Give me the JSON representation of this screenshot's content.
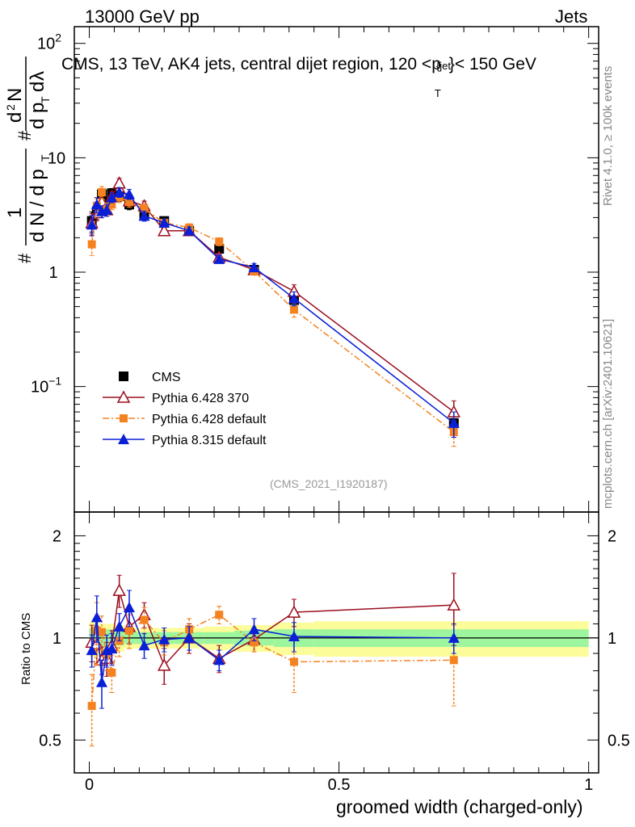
{
  "header": {
    "left": "13000 GeV pp",
    "right": "Jets"
  },
  "side_labels": {
    "rivet": "Rivet 4.1.0, ≥ 100k events",
    "mcplots": "mcplots.cern.ch [arXiv:2401.10621]"
  },
  "chart_data": {
    "type": "line",
    "title": "CMS, 13 TeV, AK4 jets, central dijet region, 120 <p{jet}T}< 150 GeV",
    "title_parts": [
      "CMS, 13 TeV, AK4 jets, central dijet region, 120 <p",
      "{jet",
      "T",
      "}< 150 GeV"
    ],
    "analysis_tag": "(CMS_2021_I1920187)",
    "xlabel": "groomed width (charged-only)",
    "ylabel_main": "#frac{1}{dN/dp_T} #frac{d^2N}{dp_T dλ}",
    "ylabel_ratio": "Ratio to CMS",
    "xlim": [
      -0.03,
      1.02
    ],
    "ylim_main": [
      0.008,
      140
    ],
    "ylim_ratio": [
      0.4,
      2.35
    ],
    "x_ticks": [
      "0",
      "0.5",
      "1"
    ],
    "y_ticks_main": [
      "10^-1",
      "1",
      "10",
      "10^2"
    ],
    "y_ticks_ratio": [
      "0.5",
      "1",
      "2"
    ],
    "x": [
      0.005,
      0.015,
      0.025,
      0.035,
      0.045,
      0.06,
      0.08,
      0.11,
      0.15,
      0.2,
      0.26,
      0.33,
      0.41,
      0.73
    ],
    "series": [
      {
        "name": "CMS",
        "color": "#000000",
        "marker": "square",
        "values": [
          2.8,
          3.4,
          4.8,
          4.0,
          4.9,
          4.6,
          3.9,
          3.2,
          2.8,
          2.3,
          1.6,
          1.05,
          0.57,
          0.048
        ]
      },
      {
        "name": "Pythia 6.428 370",
        "color": "#9b0e1f",
        "marker": "open-triangle",
        "line": "solid",
        "values": [
          2.7,
          3.3,
          4.1,
          3.5,
          4.6,
          6.0,
          4.2,
          3.8,
          2.3,
          2.3,
          1.35,
          1.05,
          0.68,
          0.06
        ],
        "ratio": [
          0.97,
          0.96,
          0.86,
          0.87,
          0.95,
          1.38,
          1.08,
          1.17,
          0.83,
          1.0,
          0.87,
          0.99,
          1.19,
          1.25
        ],
        "ratio_err": [
          0.12,
          0.12,
          0.08,
          0.1,
          0.1,
          0.15,
          0.12,
          0.1,
          0.1,
          0.1,
          0.08,
          0.08,
          0.11,
          0.3
        ]
      },
      {
        "name": "Pythia 6.428 default",
        "color": "#f58220",
        "marker": "filled-square",
        "line": "dashdot",
        "values": [
          1.75,
          3.8,
          5.0,
          3.6,
          3.9,
          4.5,
          4.1,
          3.6,
          2.7,
          2.45,
          1.85,
          1.02,
          0.47,
          0.04
        ],
        "ratio": [
          0.63,
          1.05,
          1.04,
          0.9,
          0.79,
          0.98,
          1.05,
          1.13,
          0.97,
          1.06,
          1.17,
          0.97,
          0.85,
          0.86
        ],
        "ratio_err": [
          0.15,
          0.22,
          0.12,
          0.1,
          0.1,
          0.1,
          0.12,
          0.1,
          0.08,
          0.08,
          0.07,
          0.06,
          0.16,
          0.23
        ]
      },
      {
        "name": "Pythia 8.315 default",
        "color": "#0a1fd6",
        "marker": "filled-triangle",
        "line": "solid",
        "values": [
          2.6,
          3.9,
          3.4,
          3.5,
          4.5,
          5.0,
          4.8,
          3.1,
          2.7,
          2.3,
          1.3,
          1.1,
          0.59,
          0.048
        ],
        "ratio": [
          0.92,
          1.15,
          0.74,
          0.92,
          0.93,
          1.08,
          1.23,
          0.95,
          0.99,
          1.0,
          0.86,
          1.06,
          1.01,
          1.0
        ],
        "ratio_err": [
          0.1,
          0.18,
          0.12,
          0.1,
          0.1,
          0.1,
          0.15,
          0.08,
          0.08,
          0.08,
          0.06,
          0.08,
          0.1,
          0.1
        ]
      }
    ],
    "main_err_frac": [
      0.2,
      0.15,
      0.12,
      0.12,
      0.1,
      0.1,
      0.1,
      0.1,
      0.08,
      0.08,
      0.08,
      0.08,
      0.14,
      0.25
    ],
    "uncertainty_bands": {
      "edges": [
        0.0,
        0.01,
        0.02,
        0.03,
        0.04,
        0.05,
        0.07,
        0.09,
        0.13,
        0.17,
        0.23,
        0.29,
        0.37,
        0.45,
        1.0
      ],
      "green_half": [
        0.07,
        0.07,
        0.06,
        0.06,
        0.06,
        0.05,
        0.04,
        0.04,
        0.04,
        0.04,
        0.04,
        0.05,
        0.06,
        0.06
      ],
      "yellow_half": [
        0.12,
        0.12,
        0.1,
        0.1,
        0.1,
        0.09,
        0.07,
        0.07,
        0.07,
        0.07,
        0.08,
        0.09,
        0.11,
        0.12
      ],
      "green_color": "#9df59d",
      "yellow_color": "#fcfc9a"
    },
    "legend_position": "center-left"
  }
}
